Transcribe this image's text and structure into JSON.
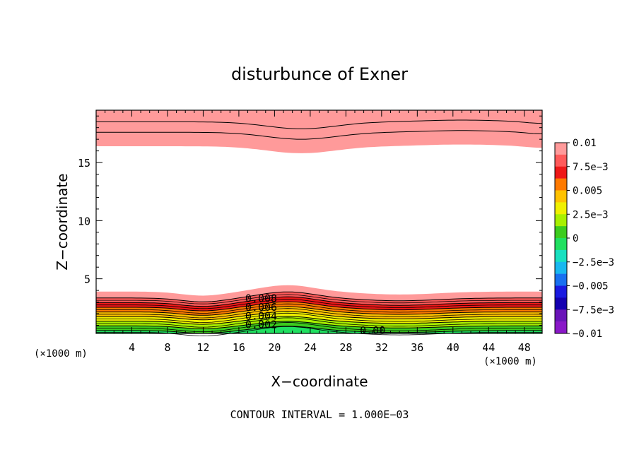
{
  "chart_data": {
    "type": "heatmap",
    "title": "disturbunce of Exner",
    "xlabel": "X−coordinate",
    "ylabel": "Z−coordinate",
    "x_unit": "(×1000 m)",
    "y_unit": "(×1000 m)",
    "x_ticks": [
      "4",
      "8",
      "12",
      "16",
      "20",
      "24",
      "28",
      "32",
      "36",
      "40",
      "44",
      "48"
    ],
    "y_ticks": [
      "5",
      "10",
      "15"
    ],
    "xlim": [
      0,
      50
    ],
    "ylim": [
      0.3,
      19.5
    ],
    "footer": "CONTOUR INTERVAL = 1.000E−03",
    "contour_labels": [
      {
        "text": "0.008",
        "x": 18.5,
        "z": 3.3
      },
      {
        "text": "0.006",
        "x": 18.5,
        "z": 2.55
      },
      {
        "text": "0.004",
        "x": 18.5,
        "z": 1.8
      },
      {
        "text": "0.002",
        "x": 18.5,
        "z": 1.05
      },
      {
        "text": "0.00",
        "x": 31,
        "z": 0.55
      }
    ],
    "colorbar": {
      "labels": [
        "0.01",
        "7.5e−3",
        "0.005",
        "2.5e−3",
        "0",
        "−2.5e−3",
        "−0.005",
        "−7.5e−3",
        "−0.01"
      ],
      "colors": [
        "#ff9a9a",
        "#ff5a5a",
        "#ee1818",
        "#ff7a00",
        "#ffc200",
        "#f0f000",
        "#a8f000",
        "#3ccc1e",
        "#20e060",
        "#18e0c0",
        "#18b8f0",
        "#1870f0",
        "#1a1ae0",
        "#1400b0",
        "#6a14b8",
        "#8a18c8"
      ]
    },
    "regions": [
      {
        "name": "upper",
        "base_level": 0.009,
        "top_z": 19.5,
        "bottom_z": 16.4,
        "bands": [
          {
            "level": 0.01,
            "color": "#ff5a5a",
            "z": 18.5
          },
          {
            "level": 0.009,
            "color": "#ff9a9a",
            "z": 17.6
          }
        ]
      },
      {
        "name": "lower",
        "top_z": 3.9,
        "bands": [
          {
            "level": 0.009,
            "color": "#ff9a9a",
            "z": 3.9
          },
          {
            "level": 0.008,
            "color": "#ff5a5a",
            "z": 3.35
          },
          {
            "level": 0.007,
            "color": "#ee1818",
            "z": 2.95
          },
          {
            "level": 0.006,
            "color": "#ff7a00",
            "z": 2.55
          },
          {
            "level": 0.005,
            "color": "#ffc200",
            "z": 2.15
          },
          {
            "level": 0.004,
            "color": "#f0f000",
            "z": 1.75
          },
          {
            "level": 0.003,
            "color": "#a8f000",
            "z": 1.35
          },
          {
            "level": 0.002,
            "color": "#3ccc1e",
            "z": 0.95
          },
          {
            "level": 0.001,
            "color": "#20e060",
            "z": 0.55
          }
        ]
      }
    ]
  }
}
